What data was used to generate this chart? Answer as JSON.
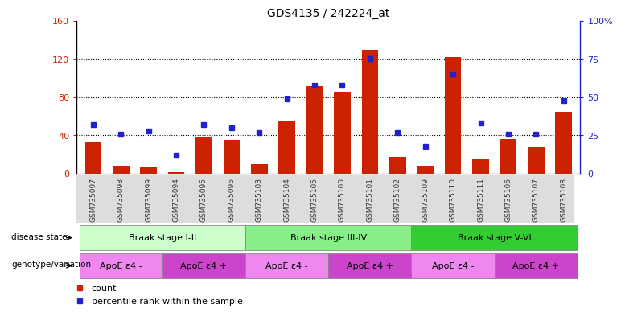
{
  "title": "GDS4135 / 242224_at",
  "samples": [
    "GSM735097",
    "GSM735098",
    "GSM735099",
    "GSM735094",
    "GSM735095",
    "GSM735096",
    "GSM735103",
    "GSM735104",
    "GSM735105",
    "GSM735100",
    "GSM735101",
    "GSM735102",
    "GSM735109",
    "GSM735110",
    "GSM735111",
    "GSM735106",
    "GSM735107",
    "GSM735108"
  ],
  "counts": [
    33,
    8,
    7,
    2,
    38,
    35,
    10,
    55,
    92,
    85,
    130,
    18,
    8,
    122,
    15,
    36,
    28,
    65
  ],
  "percentiles": [
    32,
    26,
    28,
    12,
    32,
    30,
    27,
    49,
    58,
    58,
    75,
    27,
    18,
    65,
    33,
    26,
    26,
    48
  ],
  "ylim_left": [
    0,
    160
  ],
  "ylim_right": [
    0,
    100
  ],
  "yticks_left": [
    0,
    40,
    80,
    120,
    160
  ],
  "yticks_right": [
    0,
    25,
    50,
    75,
    100
  ],
  "yticklabels_left": [
    "0",
    "40",
    "80",
    "120",
    "160"
  ],
  "yticklabels_right": [
    "0",
    "25",
    "50",
    "75",
    "100%"
  ],
  "bar_color": "#cc2200",
  "dot_color": "#2222cc",
  "disease_stages": [
    {
      "label": "Braak stage I-II",
      "start": 0,
      "end": 6,
      "color": "#ccffcc"
    },
    {
      "label": "Braak stage III-IV",
      "start": 6,
      "end": 12,
      "color": "#88ee88"
    },
    {
      "label": "Braak stage V-VI",
      "start": 12,
      "end": 18,
      "color": "#33cc33"
    }
  ],
  "genotype_groups": [
    {
      "label": "ApoE ε4 -",
      "start": 0,
      "end": 3,
      "color": "#ee88ee"
    },
    {
      "label": "ApoE ε4 +",
      "start": 3,
      "end": 6,
      "color": "#cc44cc"
    },
    {
      "label": "ApoE ε4 -",
      "start": 6,
      "end": 9,
      "color": "#ee88ee"
    },
    {
      "label": "ApoE ε4 +",
      "start": 9,
      "end": 12,
      "color": "#cc44cc"
    },
    {
      "label": "ApoE ε4 -",
      "start": 12,
      "end": 15,
      "color": "#ee88ee"
    },
    {
      "label": "ApoE ε4 +",
      "start": 15,
      "end": 18,
      "color": "#cc44cc"
    }
  ],
  "disease_label": "disease state",
  "genotype_label": "genotype/variation",
  "legend_count_label": "count",
  "legend_pct_label": "percentile rank within the sample",
  "pct_scale": 1.6,
  "grid_yticks": [
    40,
    80,
    120
  ],
  "right_ytick_labels": [
    "0",
    "25",
    "50",
    "75",
    "100%"
  ]
}
